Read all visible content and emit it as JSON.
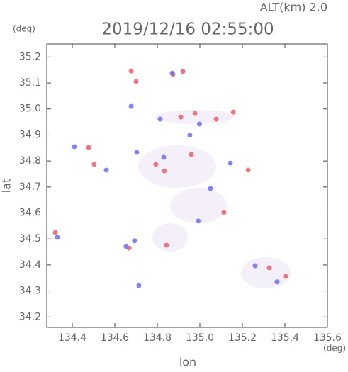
{
  "chart_data": {
    "type": "scatter",
    "title": "2019/12/16 02:55:00",
    "subtitle": "ALT(km) 2.0",
    "x_label": "lon",
    "x_unit": "(deg)",
    "y_label": "lat",
    "y_unit": "(deg)",
    "xlim": [
      134.28,
      135.6
    ],
    "xticks": [
      134.4,
      134.6,
      134.8,
      {
        "value": 135,
        "label": "135.0"
      },
      135.2,
      135.4,
      135.6
    ],
    "ylim": [
      34.16,
      35.25
    ],
    "yticks": [
      34.2,
      34.3,
      34.4,
      34.5,
      34.6,
      34.7,
      34.8,
      34.9,
      {
        "value": 35,
        "label": "35.0"
      },
      35.1,
      35.2
    ],
    "series": [
      {
        "color": "#e8606a",
        "x": [
          134.7,
          134.92,
          134.873,
          134.677,
          135.157,
          135.077,
          134.477,
          135.227,
          134.503,
          134.833,
          134.843,
          134.96,
          134.32,
          135.403,
          135.327,
          135.113,
          134.667,
          134.91,
          134.793,
          134.977
        ],
        "values": [
          35.106,
          35.144,
          35.133,
          35.146,
          34.988,
          34.961,
          34.852,
          34.765,
          34.787,
          34.762,
          34.476,
          34.825,
          34.525,
          34.356,
          34.389,
          34.602,
          34.465,
          34.969,
          34.787,
          34.983
        ]
      },
      {
        "color": "#6a6ef0",
        "x": [
          134.41,
          134.677,
          134.653,
          135.143,
          134.87,
          134.953,
          135.26,
          134.713,
          134.693,
          134.813,
          134.998,
          134.83,
          135.05,
          135.363,
          134.33,
          134.703,
          134.993,
          134.56
        ],
        "values": [
          34.855,
          35.01,
          34.471,
          34.792,
          35.138,
          34.899,
          34.397,
          34.321,
          34.493,
          34.961,
          34.942,
          34.814,
          34.694,
          34.335,
          34.506,
          34.833,
          34.569,
          34.765
        ]
      }
    ]
  }
}
